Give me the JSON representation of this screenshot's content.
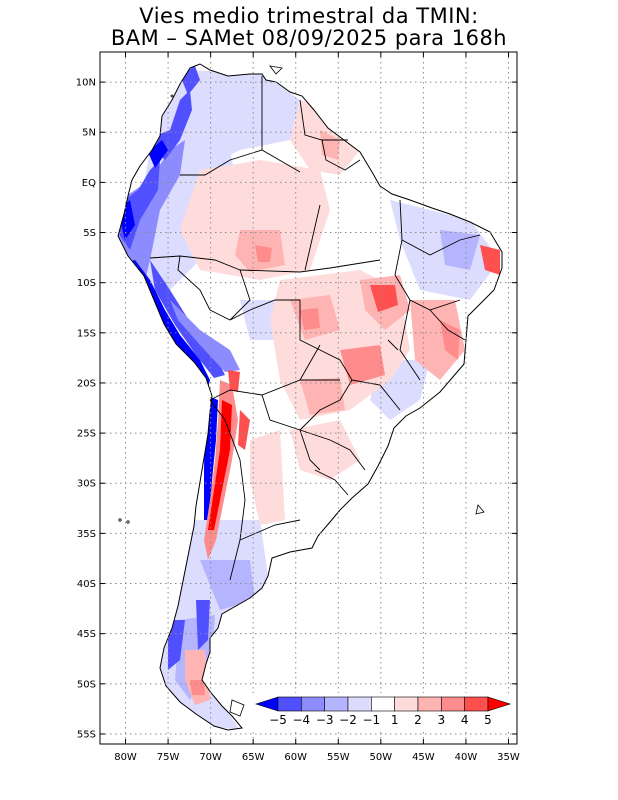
{
  "title": {
    "line1": "Vies medio trimestral da TMIN:",
    "line2": "BAM – SAMet 08/09/2025  para 168h"
  },
  "map": {
    "projection": "lat-lon",
    "lon_range": [
      -83,
      -34
    ],
    "lat_range": [
      -56,
      13
    ],
    "lon_ticks": [
      "80W",
      "75W",
      "70W",
      "65W",
      "60W",
      "55W",
      "50W",
      "45W",
      "40W",
      "35W"
    ],
    "lat_ticks": [
      "10N",
      "5N",
      "EQ",
      "5S",
      "10S",
      "15S",
      "20S",
      "25S",
      "30S",
      "35S",
      "40S",
      "45S",
      "50S",
      "55S"
    ],
    "grid": true,
    "grid_style": "dotted",
    "colors": {
      "land_default": "#ffffff",
      "border": "#000000",
      "grid": "#8c8c8c"
    }
  },
  "colorbar": {
    "labels": [
      "−5",
      "−4",
      "−3",
      "−2",
      "−1",
      "1",
      "2",
      "3",
      "4",
      "5"
    ],
    "colors": [
      "#0000ff",
      "#5050ff",
      "#8c8cff",
      "#b4b4ff",
      "#dcdcff",
      "#ffffff",
      "#ffdcdc",
      "#ffb4b4",
      "#ff8c8c",
      "#ff5050",
      "#ff0000"
    ]
  }
}
